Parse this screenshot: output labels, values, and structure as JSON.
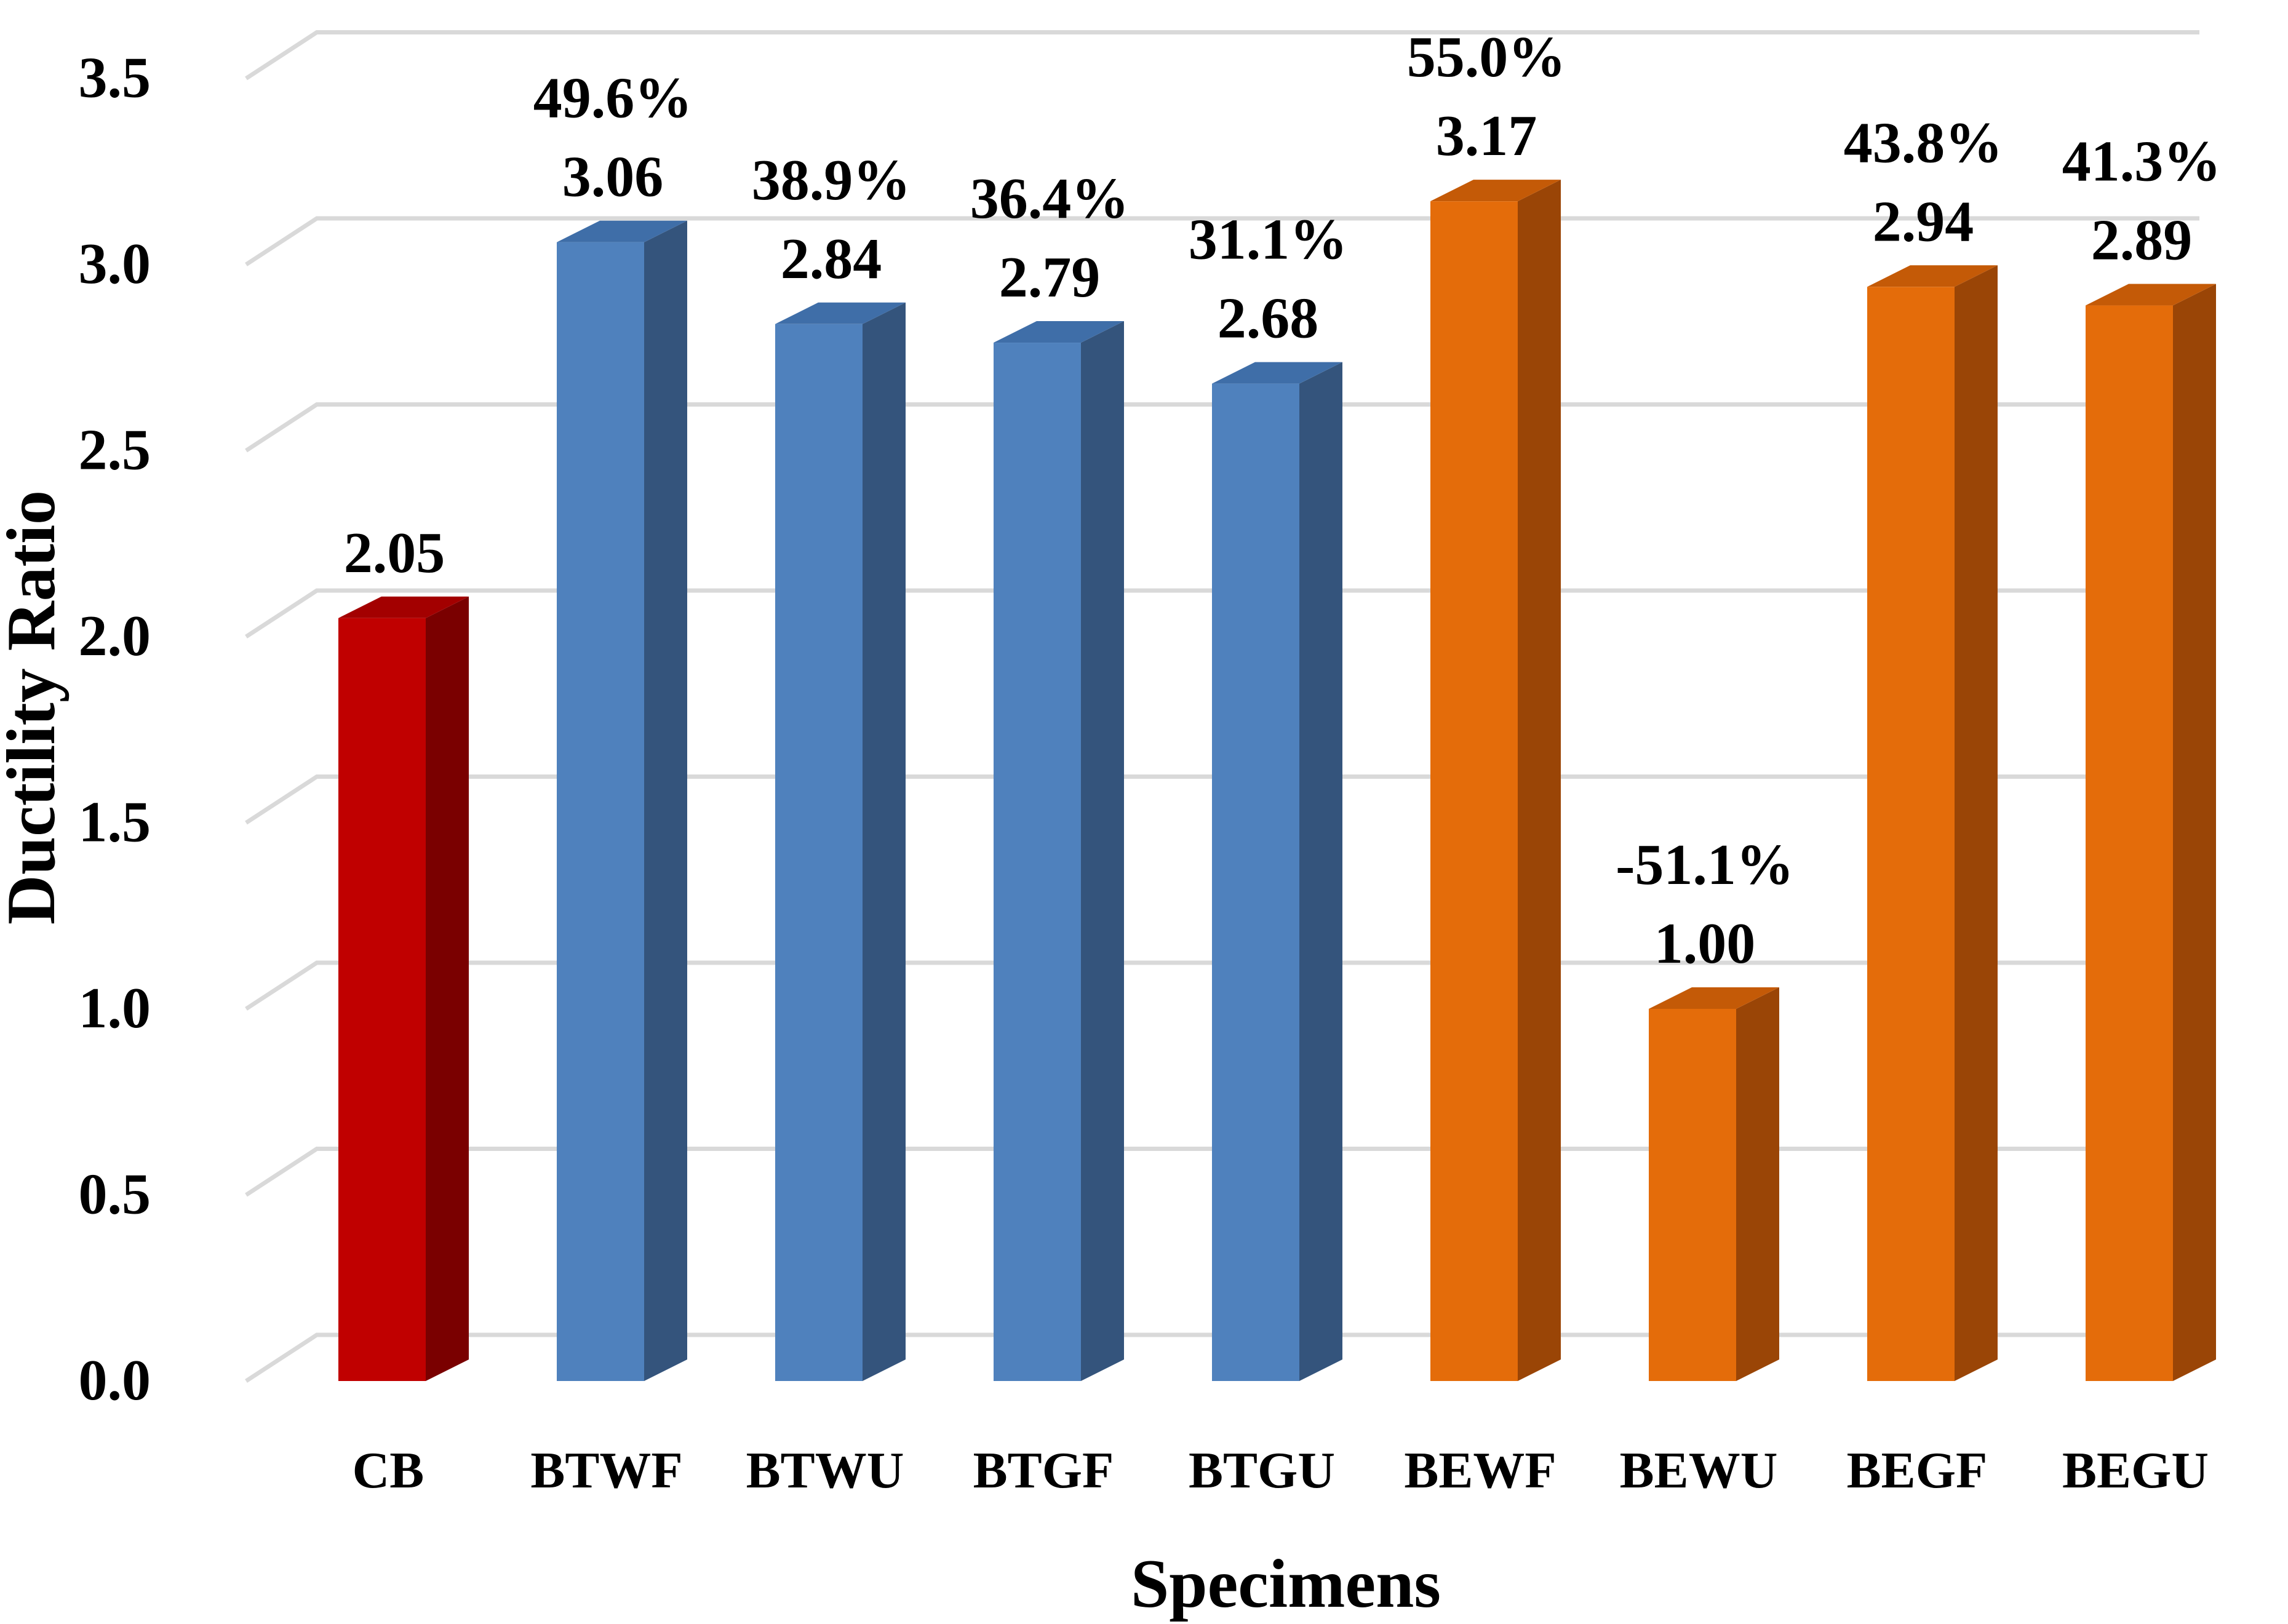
{
  "chart_data": {
    "type": "bar",
    "title": "",
    "xlabel": "Specimens",
    "ylabel": "Ductility Ratio",
    "ylim": [
      0,
      3.5
    ],
    "yticks": [
      "0.0",
      "0.5",
      "1.0",
      "1.5",
      "2.0",
      "2.5",
      "3.0",
      "3.5"
    ],
    "grid": true,
    "categories": [
      "CB",
      "BTWF",
      "BTWU",
      "BTGF",
      "BTGU",
      "BEWF",
      "BEWU",
      "BEGF",
      "BEGU"
    ],
    "values": [
      2.05,
      3.06,
      2.84,
      2.79,
      2.68,
      3.17,
      1.0,
      2.94,
      2.89
    ],
    "value_labels": [
      "2.05",
      "3.06",
      "2.84",
      "2.79",
      "2.68",
      "3.17",
      "1.00",
      "2.94",
      "2.89"
    ],
    "percent_labels": [
      "",
      "49.6%",
      "38.9%",
      "36.4%",
      "31.1%",
      "55.0%",
      "-51.1%",
      "43.8%",
      "41.3%"
    ],
    "groups": [
      "control",
      "blue",
      "blue",
      "blue",
      "blue",
      "orange",
      "orange",
      "orange",
      "orange"
    ],
    "colors": {
      "control": {
        "front": "#c00000",
        "side": "#7a0000",
        "top": "#a30000"
      },
      "blue": {
        "front": "#4f81bd",
        "side": "#34547c",
        "top": "#3f6ea8"
      },
      "orange": {
        "front": "#e46c0a",
        "side": "#9a4506",
        "top": "#c45a07"
      }
    }
  }
}
